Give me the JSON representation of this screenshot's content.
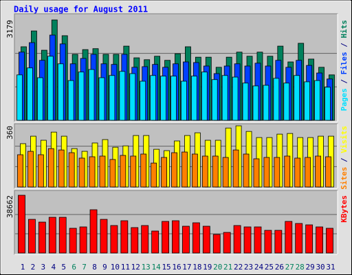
{
  "legend_separator": " / ",
  "chart_data": [
    {
      "type": "bar",
      "title": "Daily usage for August 2011",
      "ylim": [
        0,
        3179
      ],
      "yticks": [
        3179
      ],
      "series": [
        {
          "name": "Pages",
          "color": "#00e0ff",
          "values": [
            1440,
            1660,
            1350,
            2030,
            1790,
            1260,
            1530,
            1610,
            1350,
            1420,
            1550,
            1480,
            1240,
            1420,
            1400,
            1400,
            1240,
            1400,
            1530,
            1290,
            1420,
            1370,
            1180,
            1090,
            1110,
            1330,
            1180,
            1420,
            1220,
            1260,
            1050
          ]
        },
        {
          "name": "Files",
          "color": "#0040ff",
          "values": [
            2160,
            2460,
            1900,
            2700,
            2420,
            1790,
            1960,
            2090,
            1790,
            1770,
            2090,
            1680,
            1700,
            1770,
            1680,
            1790,
            1850,
            1830,
            1720,
            1480,
            1720,
            1790,
            1720,
            1810,
            1720,
            1900,
            1680,
            1900,
            1740,
            1500,
            1310
          ]
        },
        {
          "name": "Hits",
          "color": "#00805c",
          "values": [
            2330,
            2830,
            2220,
            3179,
            2680,
            2090,
            2240,
            2270,
            2090,
            2090,
            2350,
            1980,
            1920,
            2030,
            1900,
            2110,
            2330,
            2000,
            2000,
            1680,
            2000,
            2160,
            2030,
            2160,
            2030,
            2350,
            1850,
            2440,
            1940,
            1680,
            1440
          ]
        }
      ]
    },
    {
      "type": "bar",
      "ylim": [
        0,
        360
      ],
      "yticks": [
        360
      ],
      "series": [
        {
          "name": "Sites",
          "color": "#ff8000",
          "values": [
            190,
            210,
            190,
            226,
            218,
            202,
            170,
            178,
            182,
            162,
            186,
            182,
            194,
            141,
            174,
            202,
            206,
            194,
            182,
            182,
            174,
            218,
            194,
            166,
            174,
            174,
            182,
            170,
            174,
            182,
            178
          ]
        },
        {
          "name": "Visits",
          "color": "#ffff00",
          "values": [
            255,
            299,
            275,
            323,
            299,
            226,
            210,
            259,
            279,
            234,
            242,
            303,
            303,
            222,
            214,
            271,
            303,
            319,
            275,
            275,
            347,
            360,
            327,
            291,
            291,
            311,
            315,
            291,
            291,
            299,
            299
          ]
        }
      ]
    },
    {
      "type": "bar",
      "ylim": [
        0,
        38662
      ],
      "yticks": [
        38662
      ],
      "categories": [
        "1",
        "2",
        "3",
        "4",
        "5",
        "6",
        "7",
        "8",
        "9",
        "10",
        "11",
        "12",
        "13",
        "14",
        "15",
        "16",
        "17",
        "18",
        "19",
        "20",
        "21",
        "22",
        "23",
        "24",
        "25",
        "26",
        "27",
        "28",
        "29",
        "30",
        "31"
      ],
      "category_colors": [
        "#000080",
        "#000080",
        "#000080",
        "#000080",
        "#000080",
        "#00805c",
        "#00805c",
        "#000080",
        "#000080",
        "#000080",
        "#000080",
        "#000080",
        "#00805c",
        "#00805c",
        "#000080",
        "#000080",
        "#000080",
        "#000080",
        "#000080",
        "#00805c",
        "#00805c",
        "#000080",
        "#000080",
        "#000080",
        "#000080",
        "#000080",
        "#00805c",
        "#00805c",
        "#000080",
        "#000080",
        "#000080"
      ],
      "series": [
        {
          "name": "KBytes",
          "color": "#ff0000",
          "values": [
            38662,
            22540,
            20700,
            23920,
            23920,
            16560,
            17480,
            28980,
            22540,
            18400,
            21620,
            17020,
            18400,
            14720,
            21160,
            21620,
            17940,
            20240,
            17940,
            12420,
            13800,
            18400,
            17480,
            17480,
            15180,
            15180,
            21160,
            19780,
            18860,
            17480,
            16560
          ]
        }
      ]
    }
  ]
}
